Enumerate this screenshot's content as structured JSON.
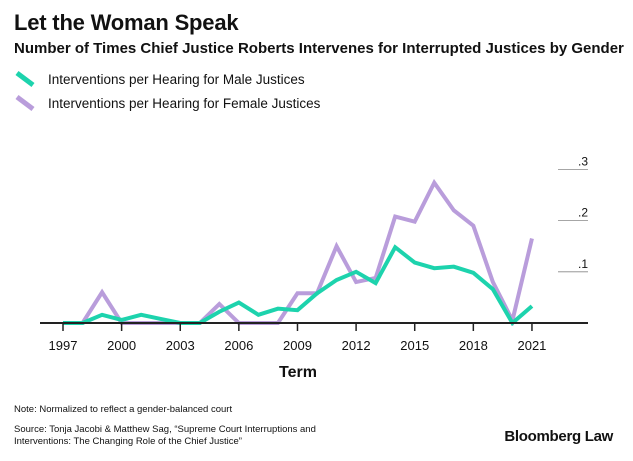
{
  "chart_data": {
    "type": "line",
    "title": "Let the Woman Speak",
    "subtitle": "Number of Times Chief Justice Roberts Intervenes for Interrupted Justices by Gender",
    "xlabel": "Term",
    "ylabel": "",
    "x": [
      1997,
      1998,
      1999,
      2000,
      2001,
      2002,
      2003,
      2004,
      2005,
      2006,
      2007,
      2008,
      2009,
      2010,
      2011,
      2012,
      2013,
      2014,
      2015,
      2016,
      2017,
      2018,
      2019,
      2020,
      2021
    ],
    "xticks": [
      "1997",
      "2000",
      "2003",
      "2006",
      "2009",
      "2012",
      "2015",
      "2018",
      "2021"
    ],
    "yticks": [
      ".1",
      ".2",
      ".3"
    ],
    "ylim": [
      0,
      0.3
    ],
    "xlim": [
      1997,
      2023
    ],
    "legend": "top-left",
    "series": [
      {
        "name": "Interventions per Hearing for Male Justices",
        "color": "#1dd3ad",
        "values": [
          0,
          0,
          0.016,
          0.006,
          0.016,
          0.008,
          0,
          0,
          0.022,
          0.04,
          0.016,
          0.028,
          0.025,
          0.058,
          0.084,
          0.1,
          0.078,
          0.148,
          0.118,
          0.107,
          0.11,
          0.098,
          0.066,
          0,
          0.033
        ]
      },
      {
        "name": "Interventions per Hearing for Female Justices",
        "color": "#b99ddb",
        "values": [
          0,
          0,
          0.06,
          0,
          0,
          0,
          0,
          0,
          0.037,
          0,
          0,
          0,
          0.058,
          0.058,
          0.15,
          0.08,
          0.088,
          0.208,
          0.198,
          0.274,
          0.22,
          0.19,
          0.08,
          0.005,
          0.165
        ]
      }
    ]
  },
  "notes": {
    "note": "Note: Normalized to reflect a gender-balanced court",
    "source_line1": "Source: Tonja Jacobi & Matthew Sag, “Supreme Court Interruptions and",
    "source_line2": "Interventions: The Changing Role of the Chief Justice”"
  },
  "brand": "Bloomberg Law"
}
